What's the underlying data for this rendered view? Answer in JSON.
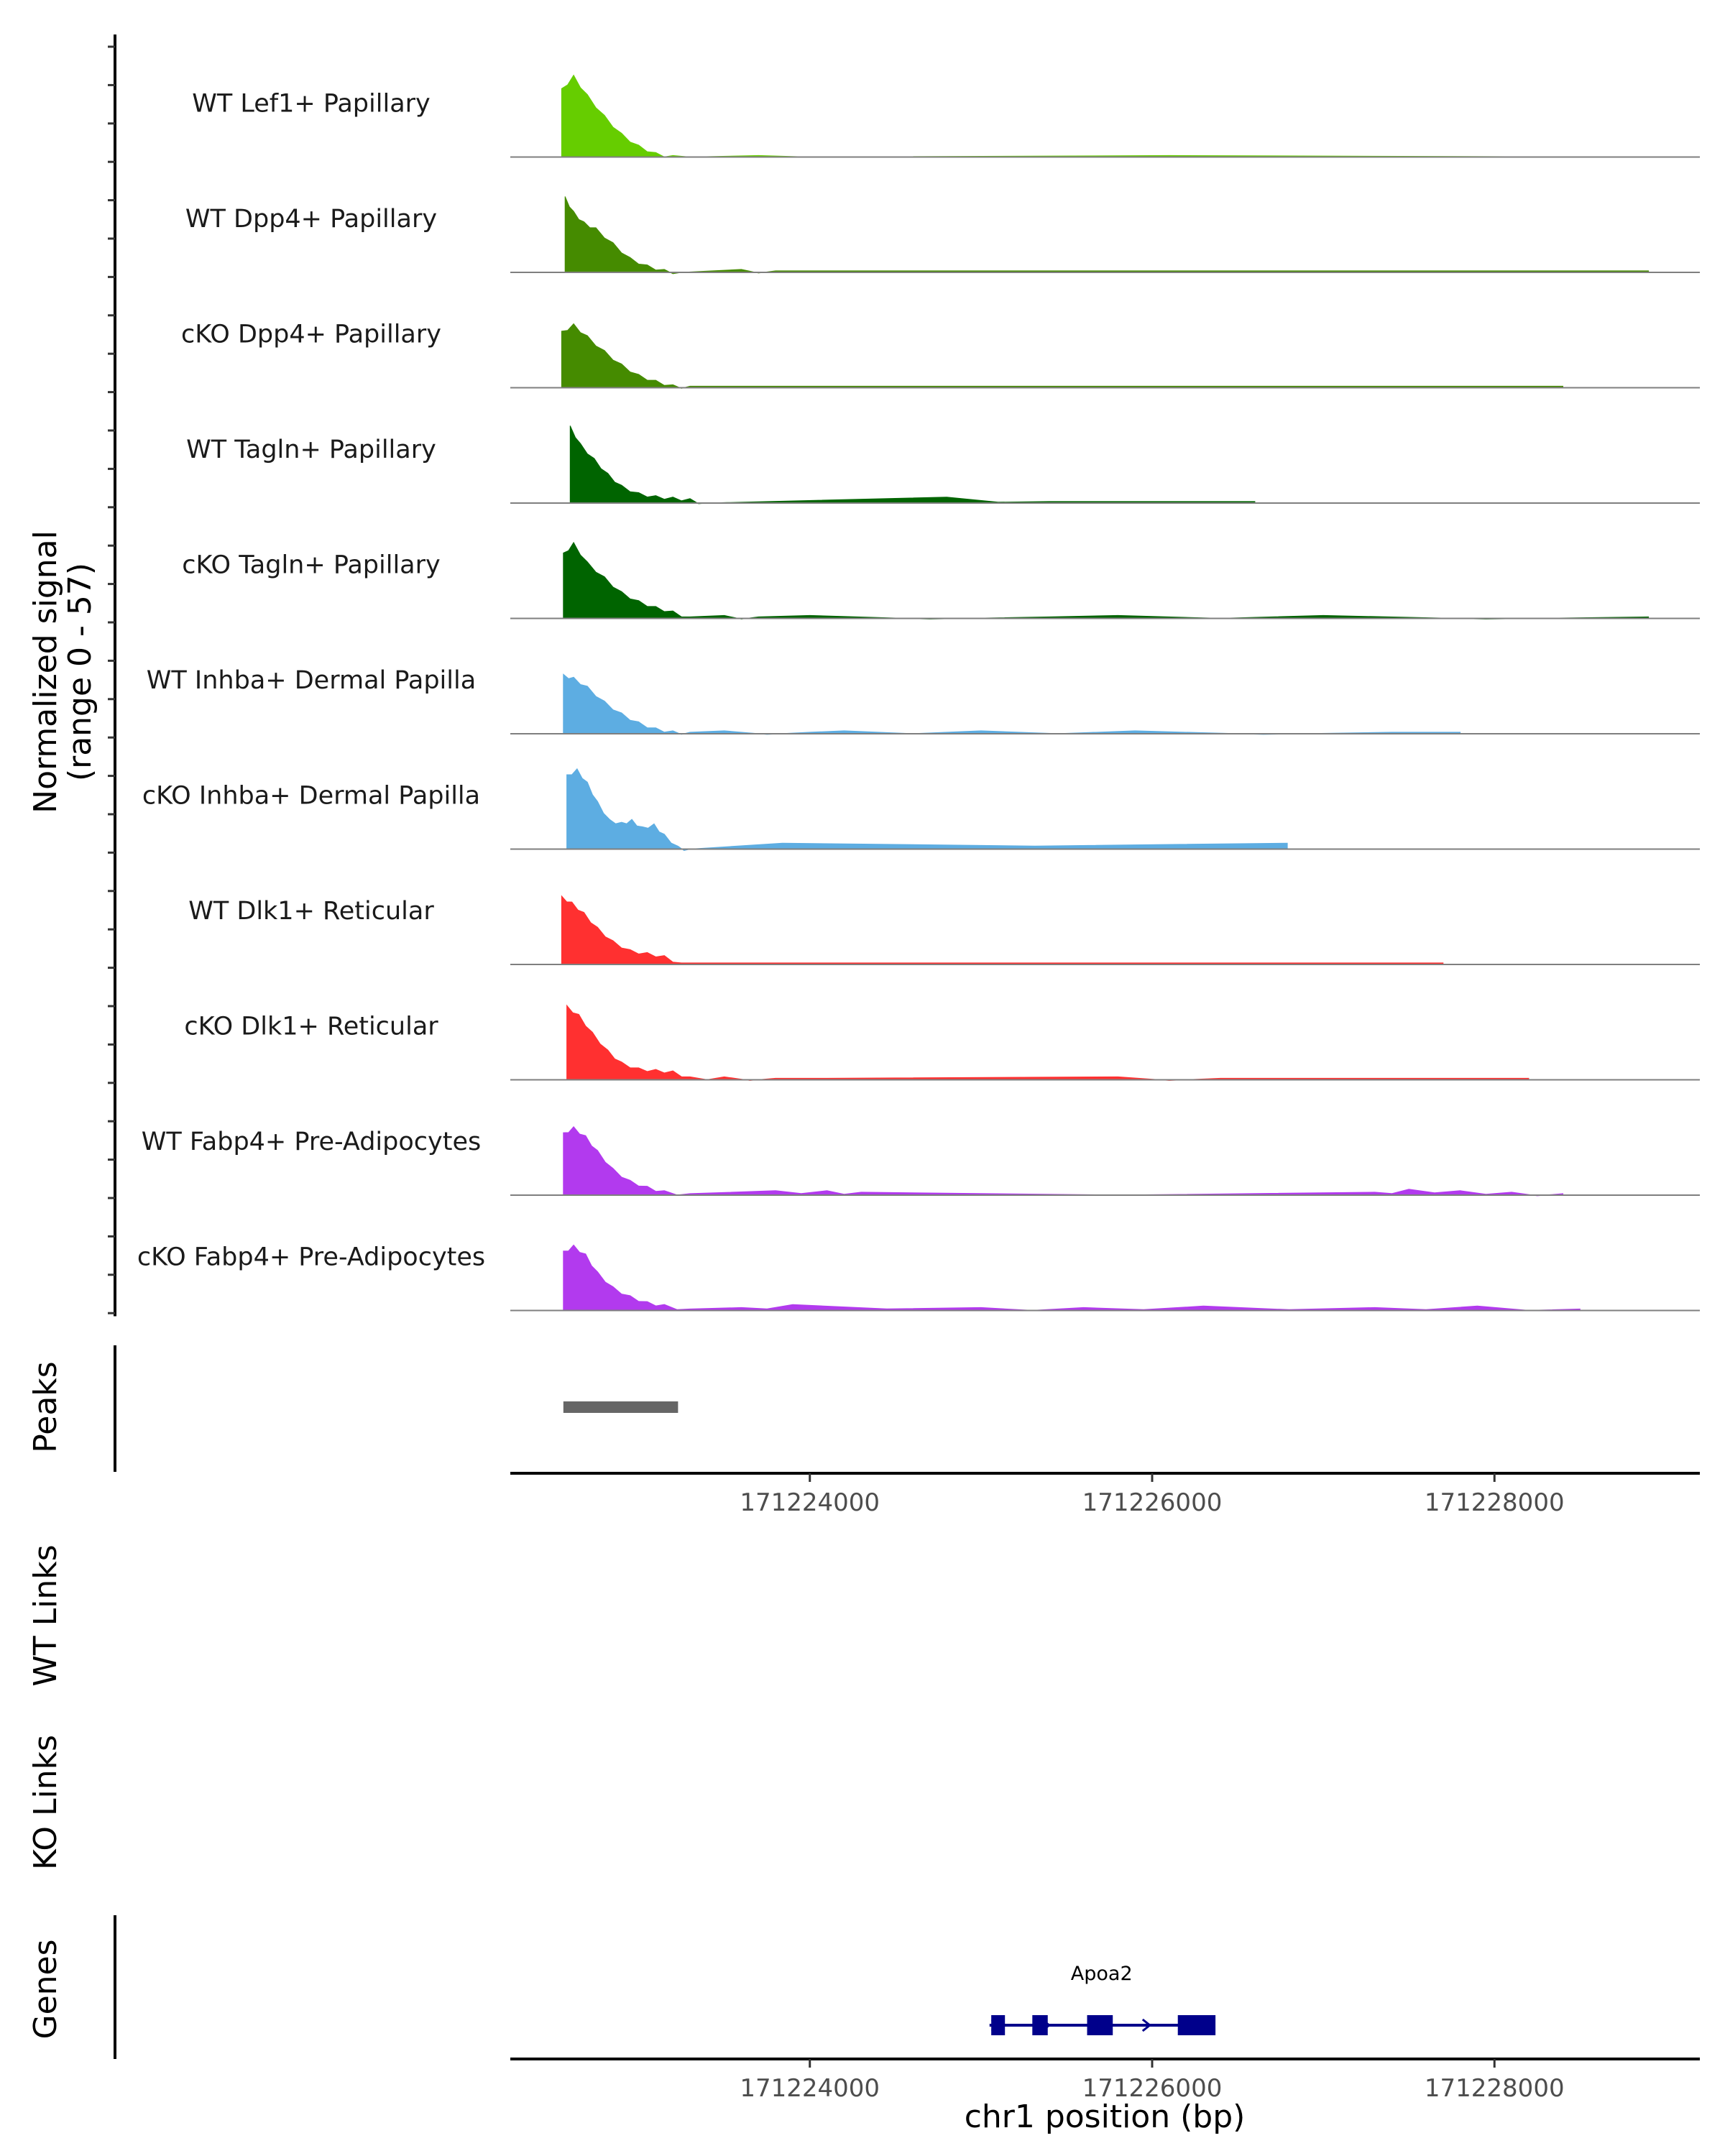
{
  "chart_data": {
    "type": "area",
    "title": "",
    "chromosome": "chr1",
    "xlabel": "chr1 position (bp)",
    "xlim": [
      171222250,
      171229200
    ],
    "x_ticks": [
      171224000,
      171226000,
      171228000
    ],
    "x_tick_labels": [
      "171224000",
      "171226000",
      "171228000"
    ],
    "coverage_ylabel_line1": "Normalized signal",
    "coverage_ylabel_line2": "(range 0 - 57)",
    "ylim": [
      0,
      57
    ],
    "panel_labels": {
      "peaks": "Peaks",
      "wt_links": "WT Links",
      "ko_links": "KO Links",
      "genes": "Genes"
    },
    "tracks": [
      {
        "name": "WT Lef1+ Papillary",
        "color": "#66CD00",
        "bins": [
          [
            171222550,
            46
          ],
          [
            171222620,
            55
          ],
          [
            171222700,
            42
          ],
          [
            171222800,
            28
          ],
          [
            171222900,
            16
          ],
          [
            171223000,
            8
          ],
          [
            171223100,
            3
          ],
          [
            171223200,
            1
          ],
          [
            171223300,
            0
          ],
          [
            171223700,
            1
          ],
          [
            171224000,
            0
          ],
          [
            171226100,
            1
          ],
          [
            171228700,
            0
          ]
        ]
      },
      {
        "name": "WT Dpp4+ Papillary",
        "color": "#458B00",
        "bins": [
          [
            171222570,
            51
          ],
          [
            171222620,
            41
          ],
          [
            171222680,
            34
          ],
          [
            171222750,
            30
          ],
          [
            171222850,
            20
          ],
          [
            171222950,
            10
          ],
          [
            171223050,
            5
          ],
          [
            171223150,
            2
          ],
          [
            171223250,
            0
          ],
          [
            171223600,
            2
          ],
          [
            171223800,
            1
          ],
          [
            171224100,
            1
          ],
          [
            171225350,
            1
          ],
          [
            171227000,
            1
          ],
          [
            171228900,
            1
          ]
        ]
      },
      {
        "name": "cKO Dpp4+ Papillary",
        "color": "#458B00",
        "bins": [
          [
            171222550,
            38
          ],
          [
            171222620,
            43
          ],
          [
            171222700,
            35
          ],
          [
            171222800,
            25
          ],
          [
            171222900,
            16
          ],
          [
            171223000,
            9
          ],
          [
            171223100,
            5
          ],
          [
            171223200,
            2
          ],
          [
            171223300,
            1
          ],
          [
            171223500,
            1
          ],
          [
            171224000,
            1
          ],
          [
            171224500,
            1
          ],
          [
            171225200,
            1
          ],
          [
            171226300,
            1
          ],
          [
            171227600,
            1
          ],
          [
            171228400,
            1
          ]
        ]
      },
      {
        "name": "WT Tagln+ Papillary",
        "color": "#006400",
        "bins": [
          [
            171222600,
            52
          ],
          [
            171222660,
            40
          ],
          [
            171222740,
            30
          ],
          [
            171222820,
            20
          ],
          [
            171222900,
            12
          ],
          [
            171223000,
            7
          ],
          [
            171223100,
            5
          ],
          [
            171223200,
            4
          ],
          [
            171223300,
            3
          ],
          [
            171223400,
            0
          ],
          [
            171224800,
            4
          ],
          [
            171225400,
            1
          ],
          [
            171225600,
            1
          ],
          [
            171226400,
            1
          ],
          [
            171226600,
            1
          ]
        ]
      },
      {
        "name": "cKO Tagln+ Papillary",
        "color": "#006400",
        "bins": [
          [
            171222560,
            44
          ],
          [
            171222620,
            51
          ],
          [
            171222700,
            38
          ],
          [
            171222800,
            28
          ],
          [
            171222900,
            18
          ],
          [
            171223000,
            12
          ],
          [
            171223100,
            8
          ],
          [
            171223200,
            5
          ],
          [
            171223300,
            1
          ],
          [
            171223500,
            2
          ],
          [
            171223700,
            1
          ],
          [
            171224000,
            2
          ],
          [
            171225400,
            1
          ],
          [
            171225800,
            2
          ],
          [
            171227000,
            2
          ],
          [
            171228900,
            1
          ]
        ]
      },
      {
        "name": "WT Inhba+ Dermal Papilla",
        "color": "#5DADE2",
        "bins": [
          [
            171222560,
            40
          ],
          [
            171222620,
            38
          ],
          [
            171222700,
            32
          ],
          [
            171222800,
            22
          ],
          [
            171222900,
            14
          ],
          [
            171223000,
            8
          ],
          [
            171223100,
            4
          ],
          [
            171223200,
            2
          ],
          [
            171223300,
            1
          ],
          [
            171223500,
            2
          ],
          [
            171224000,
            1
          ],
          [
            171224200,
            2
          ],
          [
            171225000,
            2
          ],
          [
            171225900,
            2
          ],
          [
            171227400,
            1
          ],
          [
            171227800,
            1
          ]
        ]
      },
      {
        "name": "cKO Inhba+ Dermal Papilla",
        "color": "#5DADE2",
        "bins": [
          [
            171222580,
            50
          ],
          [
            171222640,
            54
          ],
          [
            171222700,
            45
          ],
          [
            171222760,
            32
          ],
          [
            171222830,
            20
          ],
          [
            171222900,
            18
          ],
          [
            171222960,
            20
          ],
          [
            171223020,
            15
          ],
          [
            171223090,
            17
          ],
          [
            171223150,
            10
          ],
          [
            171223230,
            2
          ],
          [
            171223300,
            0
          ],
          [
            171223840,
            4
          ],
          [
            171226790,
            4
          ]
        ]
      },
      {
        "name": "WT Dlk1+ Reticular",
        "color": "#FF3030",
        "bins": [
          [
            171222550,
            46
          ],
          [
            171222610,
            42
          ],
          [
            171222680,
            35
          ],
          [
            171222760,
            25
          ],
          [
            171222850,
            16
          ],
          [
            171222950,
            10
          ],
          [
            171223050,
            8
          ],
          [
            171223150,
            6
          ],
          [
            171223250,
            1
          ],
          [
            171223500,
            1
          ],
          [
            171225000,
            1
          ],
          [
            171227300,
            1
          ],
          [
            171227700,
            1
          ]
        ]
      },
      {
        "name": "cKO Dlk1+ Reticular",
        "color": "#FF3030",
        "bins": [
          [
            171222580,
            50
          ],
          [
            171222650,
            44
          ],
          [
            171222730,
            32
          ],
          [
            171222820,
            20
          ],
          [
            171222900,
            12
          ],
          [
            171223000,
            8
          ],
          [
            171223100,
            7
          ],
          [
            171223200,
            6
          ],
          [
            171223300,
            2
          ],
          [
            171223500,
            2
          ],
          [
            171223800,
            1
          ],
          [
            171224100,
            1
          ],
          [
            171225800,
            2
          ],
          [
            171226400,
            1
          ],
          [
            171227200,
            1
          ],
          [
            171228200,
            1
          ]
        ]
      },
      {
        "name": "WT Fabp4+ Pre-Adipocytes",
        "color": "#B23AEE",
        "bins": [
          [
            171222560,
            42
          ],
          [
            171222620,
            46
          ],
          [
            171222690,
            40
          ],
          [
            171222760,
            30
          ],
          [
            171222850,
            18
          ],
          [
            171222950,
            10
          ],
          [
            171223050,
            6
          ],
          [
            171223150,
            3
          ],
          [
            171223300,
            1
          ],
          [
            171223800,
            3
          ],
          [
            171224100,
            3
          ],
          [
            171224300,
            2
          ],
          [
            171227300,
            2
          ],
          [
            171227500,
            4
          ],
          [
            171227800,
            3
          ],
          [
            171228100,
            2
          ],
          [
            171228400,
            1
          ]
        ]
      },
      {
        "name": "cKO Fabp4+ Pre-Adipocytes",
        "color": "#B23AEE",
        "bins": [
          [
            171222560,
            40
          ],
          [
            171222620,
            44
          ],
          [
            171222690,
            38
          ],
          [
            171222760,
            26
          ],
          [
            171222850,
            16
          ],
          [
            171222950,
            10
          ],
          [
            171223050,
            6
          ],
          [
            171223150,
            4
          ],
          [
            171223300,
            1
          ],
          [
            171223600,
            2
          ],
          [
            171223900,
            4
          ],
          [
            171225000,
            2
          ],
          [
            171225600,
            2
          ],
          [
            171226300,
            3
          ],
          [
            171227300,
            2
          ],
          [
            171227900,
            3
          ],
          [
            171228500,
            1
          ]
        ]
      }
    ],
    "peaks": [
      {
        "start": 171222560,
        "end": 171223230
      }
    ],
    "genes": [
      {
        "name": "Apoa2",
        "start": 171225050,
        "end": 171226360,
        "strand": "+",
        "color": "#00008B",
        "exons": [
          [
            171225060,
            171225140
          ],
          [
            171225300,
            171225390
          ],
          [
            171225620,
            171225770
          ],
          [
            171226150,
            171226370
          ]
        ]
      }
    ]
  }
}
